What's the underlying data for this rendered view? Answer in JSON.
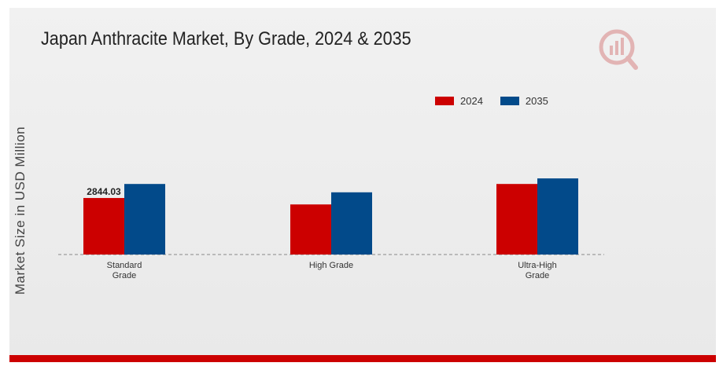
{
  "chart_data": {
    "type": "bar",
    "title": "Japan Anthracite Market, By Grade, 2024 & 2035",
    "ylabel": "Market Size in USD Million",
    "xlabel": "",
    "categories": [
      [
        "Standard",
        "Grade"
      ],
      [
        "High Grade"
      ],
      [
        "Ultra-High",
        "Grade"
      ]
    ],
    "series": [
      {
        "name": "2024",
        "color": "#cc0000",
        "values": [
          2844.03,
          2520,
          3550
        ]
      },
      {
        "name": "2035",
        "color": "#024a8a",
        "values": [
          3550,
          3130,
          3830
        ]
      }
    ],
    "data_labels": [
      {
        "series": 0,
        "index": 0,
        "text": "2844.03"
      }
    ],
    "ylim": [
      0,
      10000
    ],
    "legend_position": "top-right",
    "grid": false
  },
  "logo_icon": "market-research-logo-icon",
  "accent_color": "#cc0000"
}
